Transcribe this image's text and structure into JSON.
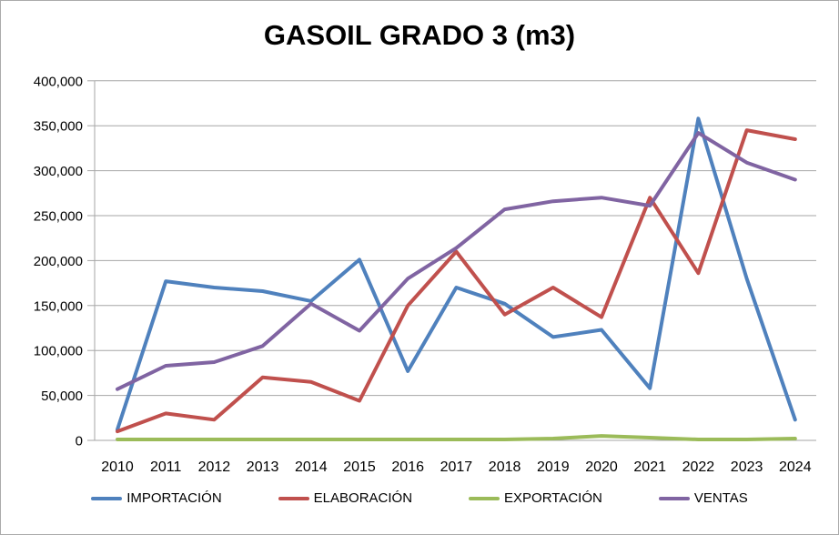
{
  "chart_data": {
    "type": "line",
    "title": "GASOIL GRADO 3 (m3)",
    "categories": [
      "2010",
      "2011",
      "2012",
      "2013",
      "2014",
      "2015",
      "2016",
      "2017",
      "2018",
      "2019",
      "2020",
      "2021",
      "2022",
      "2023",
      "2024"
    ],
    "series": [
      {
        "name": "IMPORTACIÓN",
        "color": "#4F81BD",
        "values": [
          12000,
          177000,
          170000,
          166000,
          155000,
          201000,
          77000,
          170000,
          152000,
          115000,
          123000,
          58000,
          358000,
          180000,
          23000
        ]
      },
      {
        "name": "ELABORACIÓN",
        "color": "#C0504D",
        "values": [
          10000,
          30000,
          23000,
          70000,
          65000,
          44000,
          150000,
          210000,
          140000,
          170000,
          137000,
          270000,
          186000,
          345000,
          335000
        ]
      },
      {
        "name": "EXPORTACIÓN",
        "color": "#9BBB59",
        "values": [
          1000,
          1000,
          1000,
          1000,
          1000,
          1000,
          1000,
          1000,
          1000,
          2000,
          5000,
          3000,
          1000,
          1000,
          2000
        ]
      },
      {
        "name": "VENTAS",
        "color": "#8064A2",
        "values": [
          57000,
          83000,
          87000,
          105000,
          152000,
          122000,
          180000,
          214000,
          257000,
          266000,
          270000,
          261000,
          342000,
          309000,
          290000
        ]
      }
    ],
    "ylim": [
      0,
      400000
    ],
    "ytick_step": 50000,
    "ytick_labels": [
      "0",
      "50,000",
      "100,000",
      "150,000",
      "200,000",
      "250,000",
      "300,000",
      "350,000",
      "400,000"
    ],
    "grid": "horizontal",
    "legend_position": "bottom",
    "grid_color": "#A6A6A6",
    "axis_color": "#A6A6A6",
    "text_color": "#000000",
    "border_color": "#ABABAB"
  }
}
